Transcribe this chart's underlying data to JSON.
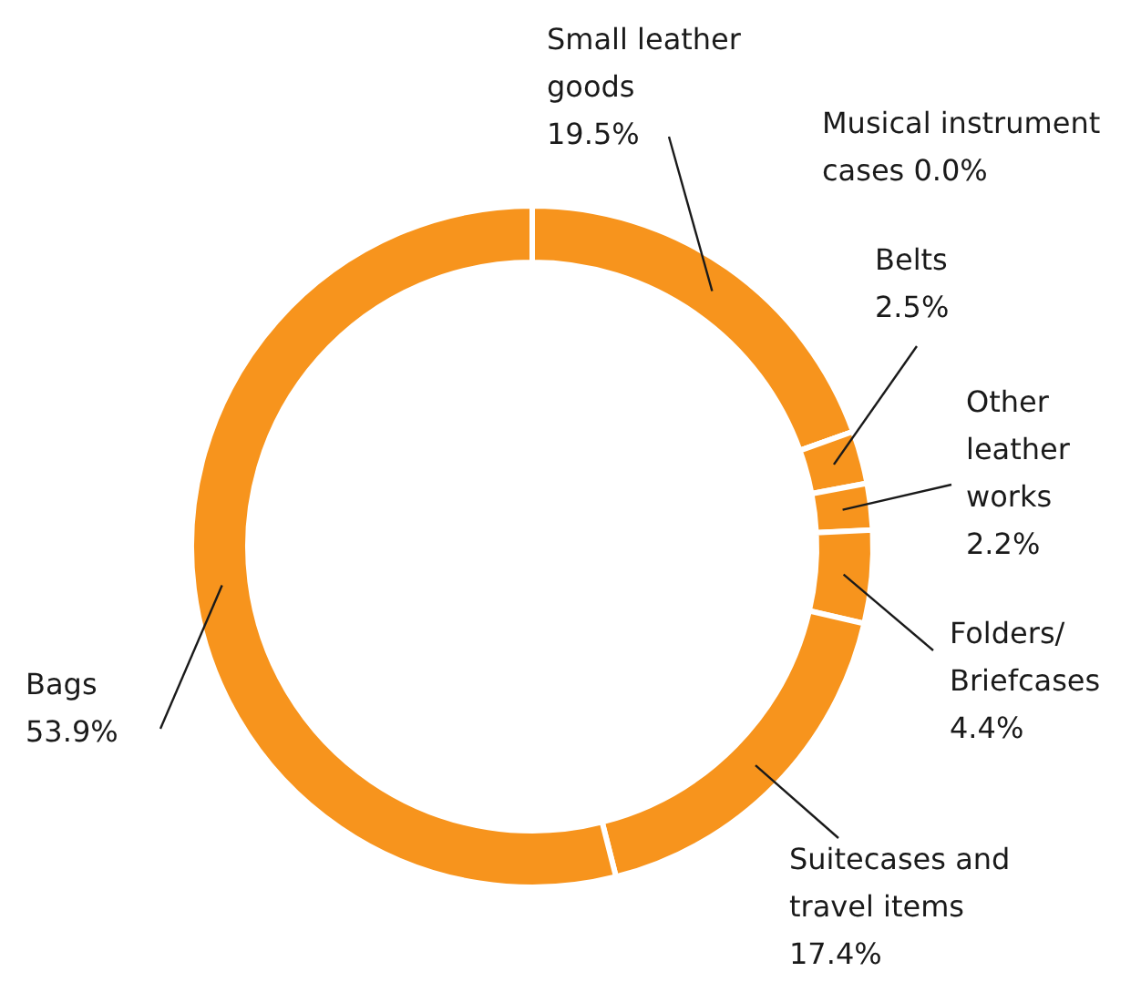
{
  "chart_data": {
    "type": "donut",
    "categories": [
      "Small leather goods",
      "Musical instrument cases",
      "Belts",
      "Other leather works",
      "Folders/Briefcases",
      "Suitecases and travel items",
      "Bags"
    ],
    "values": [
      19.5,
      0.0,
      2.5,
      2.2,
      4.4,
      17.4,
      53.9
    ],
    "colors": [
      "#f7941d",
      "#f7941d",
      "#f7941d",
      "#f7941d",
      "#f7941d",
      "#f7941d",
      "#f7941d"
    ],
    "value_labels": [
      "19.5%",
      "0.0%",
      "2.5%",
      "2.2%",
      "4.4%",
      "17.4%",
      "53.9%"
    ]
  }
}
